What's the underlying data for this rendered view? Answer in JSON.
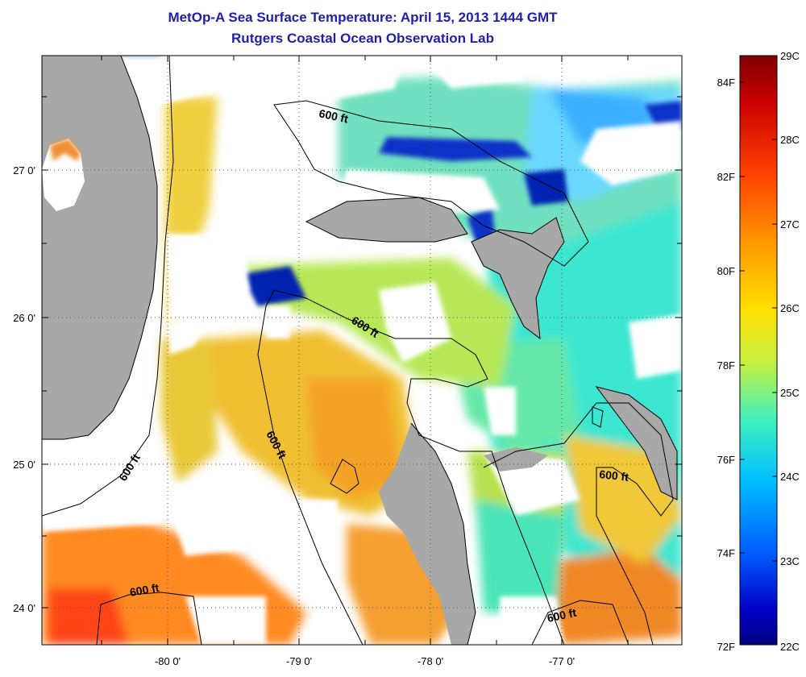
{
  "title": "MetOp-A Sea Surface Temperature:  April 15, 2013 1444 GMT",
  "subtitle": "Rutgers Coastal Ocean Observation Lab",
  "map": {
    "lon_ticks": [
      "-80 0'",
      "-79 0'",
      "-78 0'",
      "-77 0'"
    ],
    "lat_ticks": [
      "27 0'",
      "26 0'",
      "25 0'",
      "24 0'"
    ],
    "contour_label": "600 ft",
    "land_color": "#a8a8a8",
    "cloud_color": "#ffffff"
  },
  "colorbar": {
    "celsius_labels": [
      "29C",
      "28C",
      "27C",
      "26C",
      "25C",
      "24C",
      "23C",
      "22C"
    ],
    "fahrenheit_labels": [
      "84F",
      "82F",
      "80F",
      "78F",
      "76F",
      "74F",
      "72F"
    ],
    "min_c": 22,
    "max_c": 29,
    "colors": [
      "#7f0000",
      "#cc0000",
      "#ff4000",
      "#ff9900",
      "#ffe000",
      "#c8f040",
      "#40f0c0",
      "#00c0ff",
      "#0060ff",
      "#0000c8",
      "#00007f"
    ]
  }
}
